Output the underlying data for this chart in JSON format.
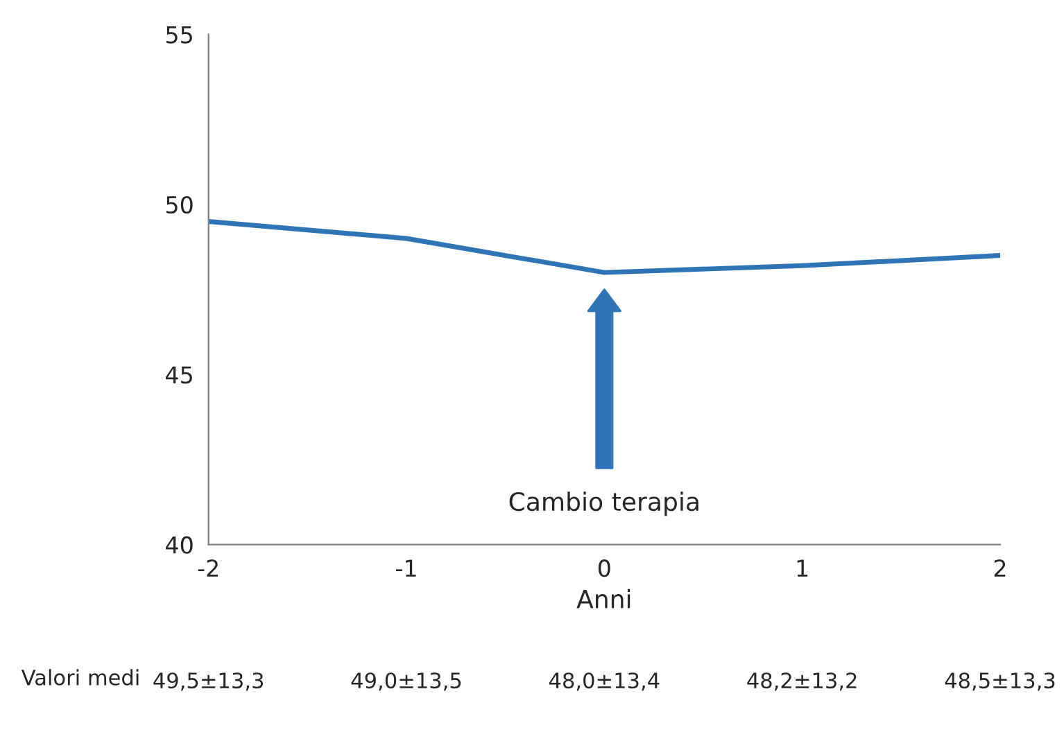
{
  "chart_data": {
    "type": "line",
    "xlabel": "Anni",
    "x": [
      -2,
      -1,
      0,
      1,
      2
    ],
    "series": [
      {
        "color": "#2f75b5",
        "values": [
          49.5,
          49.0,
          48.0,
          48.2,
          48.5
        ]
      }
    ],
    "xlim": [
      -2,
      2
    ],
    "xticks": [
      -2,
      -1,
      0,
      1,
      2
    ],
    "ylim": [
      40,
      55
    ],
    "yticks": [
      40,
      45,
      50,
      55
    ],
    "grid": false,
    "marker": "none",
    "line_style": "solid",
    "annotations": [
      "Cambio terapia",
      "Valori medi",
      "49,5±13,3",
      "49,0±13,5",
      "48,0±13,4",
      "48,2±13,2",
      "48,5±13,3"
    ]
  }
}
